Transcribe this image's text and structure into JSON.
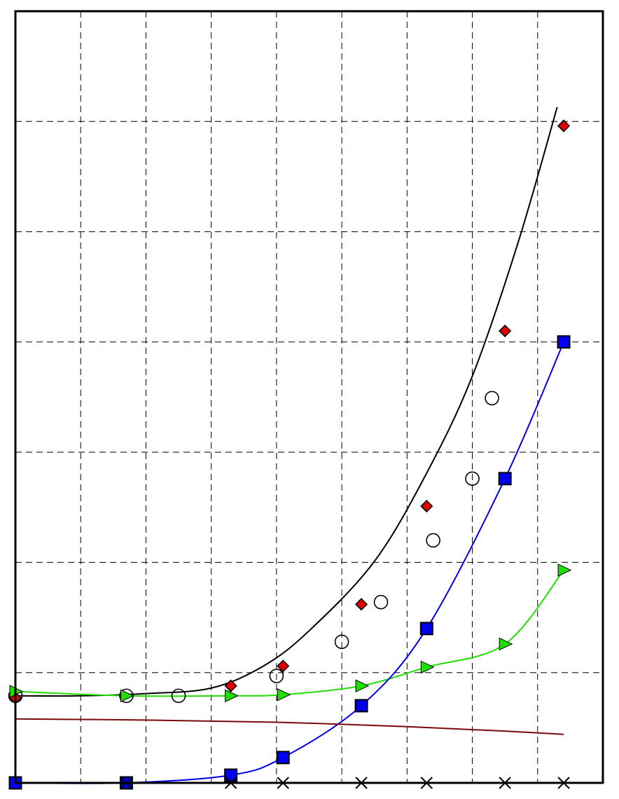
{
  "chart_data": {
    "type": "line",
    "title": "",
    "xlabel": "",
    "ylabel": "",
    "xlim": [
      0,
      9
    ],
    "ylim": [
      0,
      7
    ],
    "grid": true,
    "legend": "none",
    "series": [
      {
        "color": "#000000",
        "line": true,
        "marker": "none",
        "points": [
          [
            0,
            0.79
          ],
          [
            1,
            0.79
          ],
          [
            2,
            0.81
          ],
          [
            3,
            0.86
          ],
          [
            3.8,
            1.06
          ],
          [
            4.5,
            1.38
          ],
          [
            5.5,
            2.01
          ],
          [
            6.3,
            2.81
          ],
          [
            7,
            3.69
          ],
          [
            7.7,
            4.9
          ],
          [
            8.3,
            6.13
          ]
        ]
      },
      {
        "color": "#e00000",
        "line": false,
        "marker": "diamond",
        "points": [
          [
            0,
            0.77
          ],
          [
            3.3,
            0.88
          ],
          [
            4.1,
            1.06
          ],
          [
            5.3,
            1.62
          ],
          [
            6.3,
            2.51
          ],
          [
            7.5,
            4.1
          ],
          [
            8.4,
            5.96
          ]
        ]
      },
      {
        "color": "#000000",
        "line": false,
        "marker": "circle",
        "points": [
          [
            0,
            0.79
          ],
          [
            1.7,
            0.79
          ],
          [
            2.5,
            0.79
          ],
          [
            4,
            0.97
          ],
          [
            5,
            1.28
          ],
          [
            5.6,
            1.64
          ],
          [
            6.4,
            2.2
          ],
          [
            7,
            2.76
          ],
          [
            7.3,
            3.49
          ]
        ]
      },
      {
        "color": "#22dd00",
        "line": true,
        "marker": "triangle",
        "points": [
          [
            0,
            0.83
          ],
          [
            1.7,
            0.79
          ],
          [
            3.3,
            0.79
          ],
          [
            4.1,
            0.8
          ],
          [
            5.3,
            0.88
          ],
          [
            6.3,
            1.05
          ],
          [
            7.5,
            1.26
          ],
          [
            8.4,
            1.93
          ]
        ]
      },
      {
        "color": "#0000ee",
        "line": true,
        "marker": "square",
        "points": [
          [
            0,
            0
          ],
          [
            1.7,
            0
          ],
          [
            3.3,
            0.07
          ],
          [
            4.1,
            0.23
          ],
          [
            5.3,
            0.7
          ],
          [
            6.3,
            1.4
          ],
          [
            7.5,
            2.76
          ],
          [
            8.4,
            4.0
          ]
        ]
      },
      {
        "color": "#7a0a0a",
        "line": true,
        "marker": "none",
        "points": [
          [
            0,
            0.58
          ],
          [
            2,
            0.57
          ],
          [
            4,
            0.55
          ],
          [
            6,
            0.51
          ],
          [
            7.5,
            0.47
          ],
          [
            8.4,
            0.44
          ]
        ]
      },
      {
        "color": "#000000",
        "line": false,
        "marker": "x",
        "points": [
          [
            1.7,
            0
          ],
          [
            3.3,
            0
          ],
          [
            4.1,
            0
          ],
          [
            5.3,
            0
          ],
          [
            6.3,
            0
          ],
          [
            7.5,
            0
          ],
          [
            8.4,
            0
          ]
        ]
      }
    ]
  }
}
